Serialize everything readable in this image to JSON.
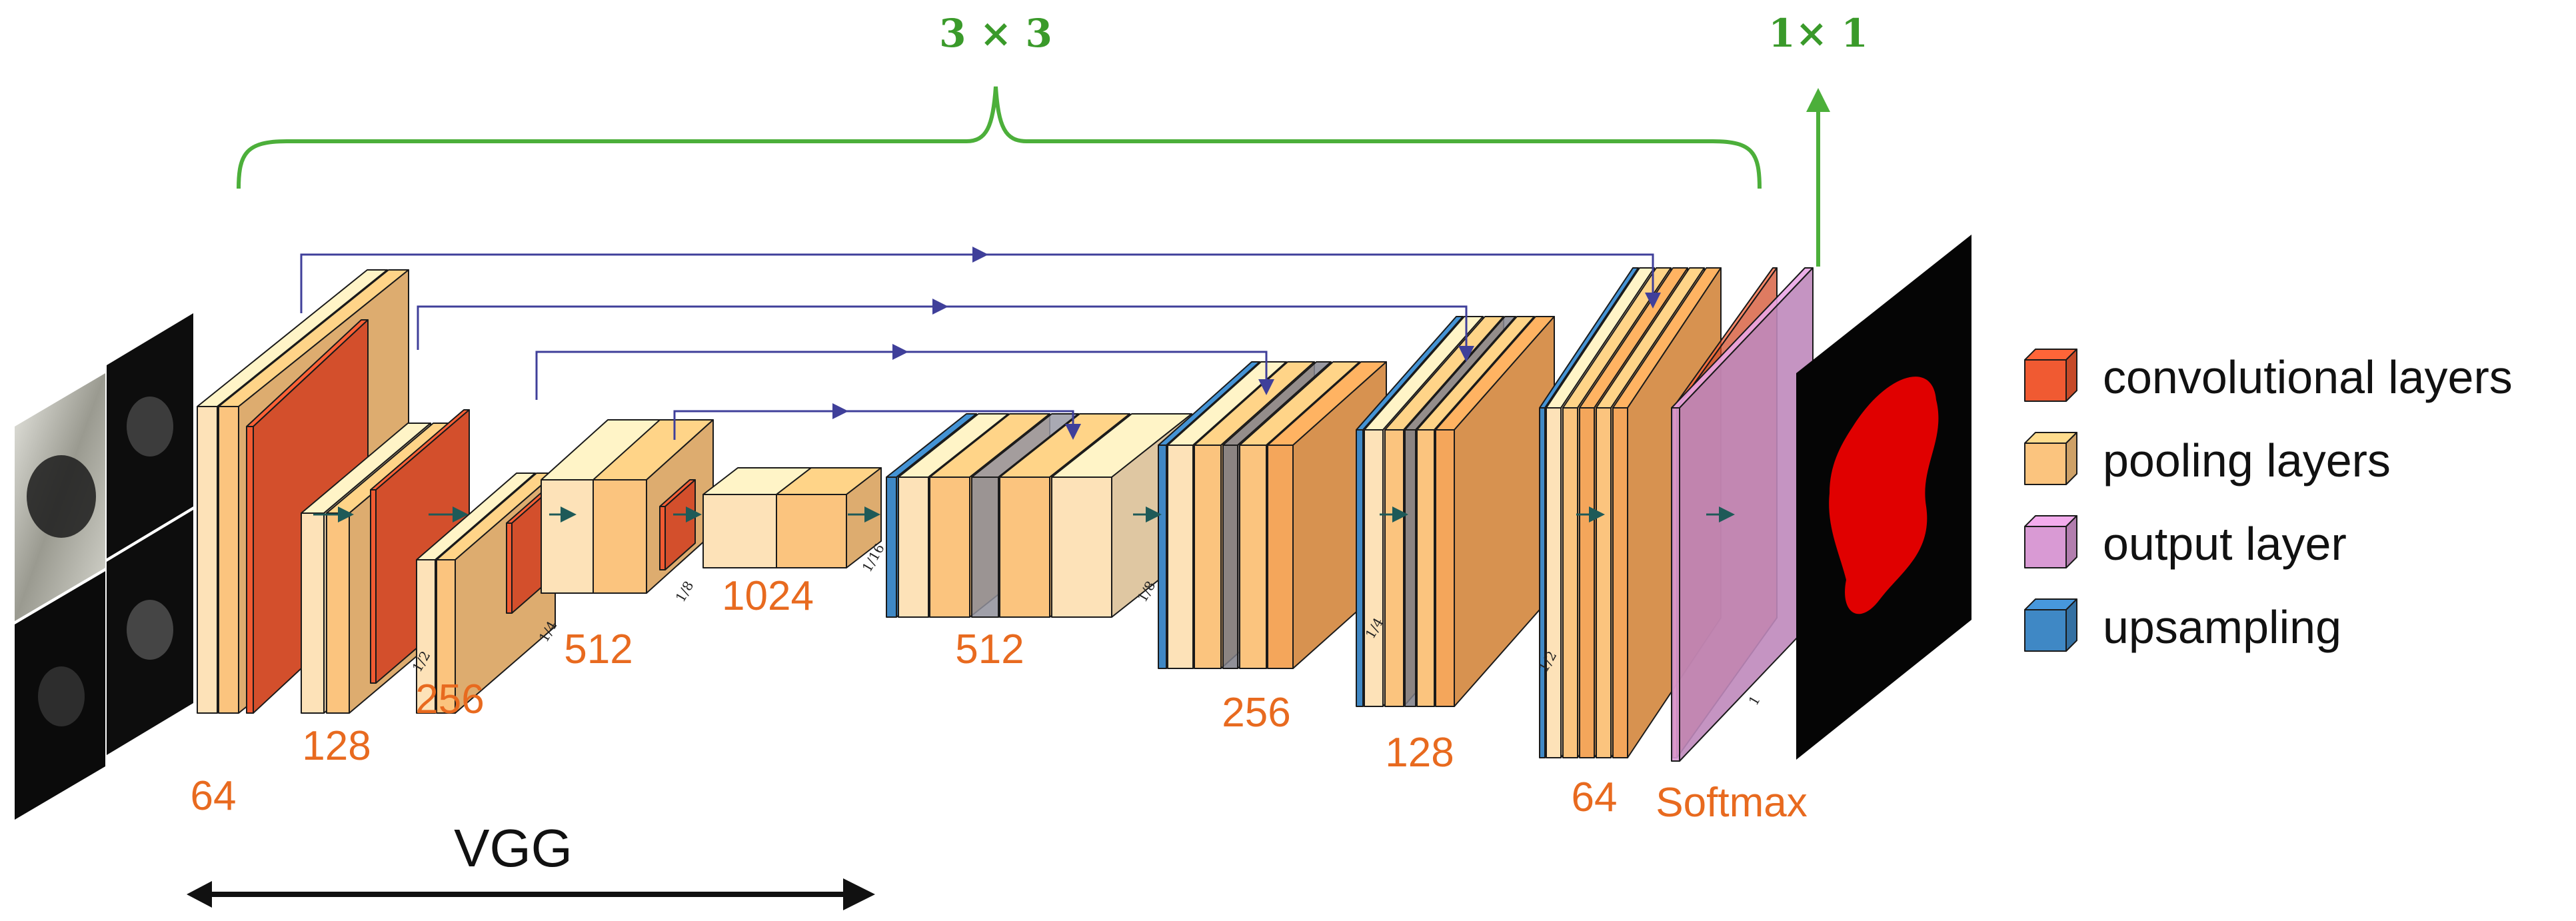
{
  "kernel_labels": {
    "conv": "3 × 3",
    "final": "1× 1"
  },
  "encoder_labels": [
    "64",
    "128",
    "256",
    "512",
    "1024"
  ],
  "decoder_labels": [
    "512",
    "256",
    "128",
    "64"
  ],
  "output_label": "Softmax",
  "scale_ticks": [
    "1/2",
    "1/4",
    "1/8",
    "1/16",
    "1/8",
    "1/4",
    "1/2",
    "1"
  ],
  "backbone_label": "VGG",
  "legend": [
    {
      "label": "convolutional layers",
      "color": "#f05a32"
    },
    {
      "label": "pooling layers",
      "color": "#fbc47e"
    },
    {
      "label": "output layer",
      "color": "#d99ad4"
    },
    {
      "label": "upsampling",
      "color": "#3f88c5"
    }
  ],
  "colors": {
    "conv": "#f05a32",
    "pool_light": "#fde2b8",
    "pool_mid": "#fbc47e",
    "pool_dark": "#f4a65b",
    "upsampling": "#3f88c5",
    "output": "#d99ad4",
    "bracket": "#4caf3a",
    "skip": "#3f3f9a",
    "label": "#e86a1f"
  }
}
